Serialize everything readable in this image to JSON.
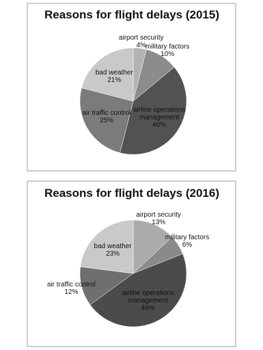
{
  "chart_data": [
    {
      "type": "pie",
      "title": "Reasons for flight delays (2015)",
      "categories": [
        "airport security",
        "military factors",
        "airline operations management",
        "air traffic control",
        "bad weather"
      ],
      "values": [
        4,
        10,
        40,
        25,
        21
      ],
      "value_labels": [
        "4%",
        "10%",
        "40%",
        "25%",
        "21%"
      ],
      "colors": [
        "#b3b3b3",
        "#8c8c8c",
        "#525252",
        "#7b7b7b",
        "#c9c9c9"
      ]
    },
    {
      "type": "pie",
      "title": "Reasons for flight delays (2016)",
      "categories": [
        "airport security",
        "military factors",
        "airline operations management",
        "air traffic control",
        "bad weather"
      ],
      "values": [
        13,
        6,
        46,
        12,
        23
      ],
      "value_labels": [
        "13%",
        "6%",
        "46%",
        "12%",
        "23%"
      ],
      "colors": [
        "#ababab",
        "#8a8a8a",
        "#4b4b4b",
        "#6f6f6f",
        "#c9c9c9"
      ]
    }
  ]
}
